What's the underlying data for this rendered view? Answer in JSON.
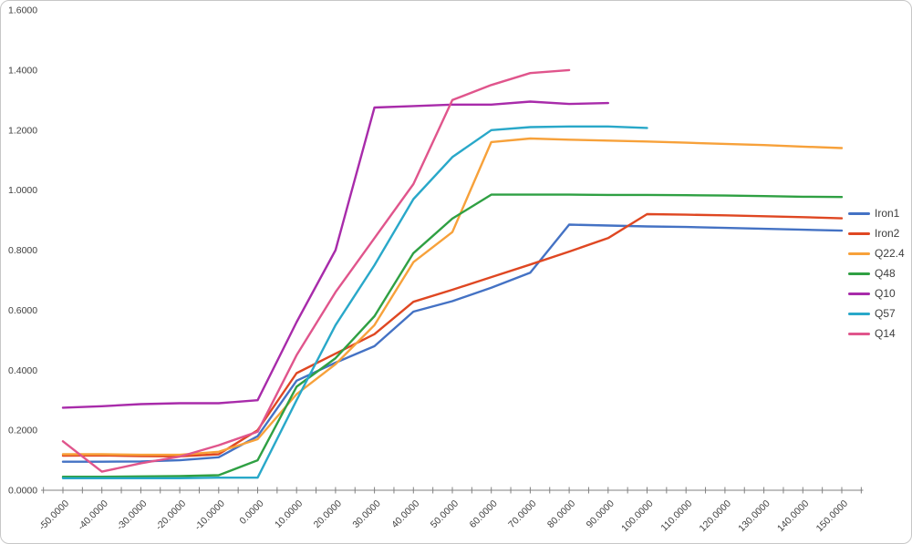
{
  "chart": {
    "title": "",
    "background": "#ffffff",
    "frame_border_color": "#c7c7c7",
    "axis_color": "#808080",
    "label_color": "#3f3f3f",
    "y_axis": {
      "min": 0.0,
      "max": 1.6,
      "step": 0.2,
      "tick_labels": [
        "0.0000",
        "0.2000",
        "0.4000",
        "0.6000",
        "0.8000",
        "1.0000",
        "1.2000",
        "1.4000",
        "1.6000"
      ]
    },
    "x_axis": {
      "min": -50,
      "max": 150,
      "step": 10,
      "tick_labels": [
        "-50.0000",
        "-40.0000",
        "-30.0000",
        "-20.0000",
        "-10.0000",
        "0.0000",
        "10.0000",
        "20.0000",
        "30.0000",
        "40.0000",
        "50.0000",
        "60.0000",
        "70.0000",
        "80.0000",
        "90.0000",
        "100.0000",
        "110.0000",
        "120.0000",
        "130.0000",
        "140.0000",
        "150.0000"
      ]
    },
    "legend": {
      "position": "right",
      "entries": [
        "Iron1",
        "Iron2",
        "Q22.4",
        "Q48",
        "Q10",
        "Q57",
        "Q14"
      ]
    }
  },
  "chart_data": {
    "type": "line",
    "title": "",
    "xlabel": "",
    "ylabel": "",
    "grid": false,
    "legend_position": "right",
    "ylim": [
      0.0,
      1.6
    ],
    "x": [
      -50,
      -40,
      -30,
      -20,
      -10,
      0,
      10,
      20,
      30,
      40,
      50,
      60,
      70,
      80,
      90,
      100,
      110,
      120,
      130,
      140,
      150
    ],
    "series": [
      {
        "name": "Iron1",
        "color": "#4472C4",
        "values": [
          0.095,
          0.095,
          0.096,
          0.1,
          0.11,
          0.18,
          0.365,
          0.425,
          0.48,
          0.595,
          0.63,
          0.675,
          0.725,
          0.885,
          0.882,
          0.879,
          0.877,
          0.874,
          0.871,
          0.868,
          0.865
        ]
      },
      {
        "name": "Iron2",
        "color": "#DF4722",
        "values": [
          0.115,
          0.116,
          0.114,
          0.113,
          0.12,
          0.2,
          0.39,
          0.455,
          0.52,
          0.628,
          0.668,
          0.71,
          0.752,
          0.795,
          0.84,
          0.92,
          0.918,
          0.916,
          0.913,
          0.91,
          0.906
        ]
      },
      {
        "name": "Q22.4",
        "color": "#F7A13A",
        "values": [
          0.12,
          0.12,
          0.118,
          0.118,
          0.128,
          0.17,
          0.32,
          0.42,
          0.55,
          0.76,
          0.86,
          1.16,
          1.172,
          1.168,
          1.165,
          1.162,
          1.158,
          1.154,
          1.15,
          1.145,
          1.14
        ]
      },
      {
        "name": "Q48",
        "color": "#2FA043",
        "values": [
          0.045,
          0.045,
          0.046,
          0.047,
          0.05,
          0.1,
          0.345,
          0.44,
          0.58,
          0.79,
          0.905,
          0.985,
          0.985,
          0.985,
          0.984,
          0.984,
          0.983,
          0.982,
          0.98,
          0.978,
          0.977
        ]
      },
      {
        "name": "Q10",
        "color": "#A82BAA",
        "values": [
          0.275,
          0.28,
          0.287,
          0.29,
          0.29,
          0.3,
          0.56,
          0.8,
          1.275,
          1.28,
          1.285,
          1.285,
          1.295,
          1.287,
          1.29,
          null,
          null,
          null,
          null,
          null,
          null
        ]
      },
      {
        "name": "Q57",
        "color": "#29A8C9",
        "values": [
          0.04,
          0.04,
          0.04,
          0.04,
          0.042,
          0.042,
          0.3,
          0.55,
          0.75,
          0.97,
          1.11,
          1.2,
          1.21,
          1.212,
          1.212,
          1.207,
          null,
          null,
          null,
          null,
          null
        ]
      },
      {
        "name": "Q14",
        "color": "#E0558C",
        "values": [
          0.163,
          0.062,
          0.09,
          0.112,
          0.15,
          0.195,
          0.45,
          0.66,
          0.84,
          1.02,
          1.3,
          1.35,
          1.39,
          1.4,
          null,
          null,
          null,
          null,
          null,
          null,
          null
        ]
      }
    ]
  }
}
